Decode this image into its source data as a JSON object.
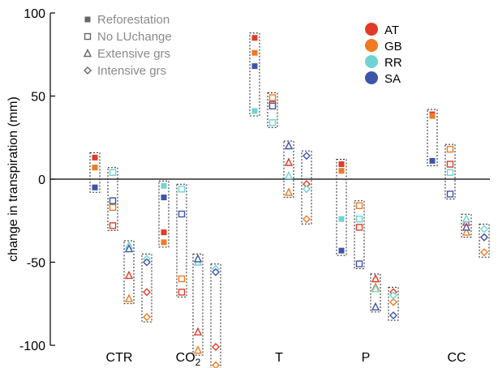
{
  "chart_data": {
    "type": "scatter",
    "ylabel": "change in transpiration (mm)",
    "ylim": [
      -100,
      100
    ],
    "yticks": [
      100,
      50,
      0,
      -50,
      -100
    ],
    "yticklabels": [
      "100",
      "50",
      "0",
      "-50",
      "-100"
    ],
    "categories": [
      "CTR",
      "CO2",
      "T",
      "P",
      "CC"
    ],
    "category_labels": [
      {
        "main": "CTR",
        "sub": ""
      },
      {
        "main": "CO",
        "sub": "2"
      },
      {
        "main": "T",
        "sub": ""
      },
      {
        "main": "P",
        "sub": ""
      },
      {
        "main": "CC",
        "sub": ""
      }
    ],
    "scenarios": [
      {
        "key": "refo",
        "label": "Reforestation",
        "marker": "filled-square"
      },
      {
        "key": "nolu",
        "label": "No LUchange",
        "marker": "open-square"
      },
      {
        "key": "ext",
        "label": "Extensive grs",
        "marker": "open-triangle"
      },
      {
        "key": "int",
        "label": "Intensive grs",
        "marker": "open-diamond"
      }
    ],
    "regions": [
      {
        "key": "AT",
        "label": "AT",
        "color": "#e03a2a"
      },
      {
        "key": "GB",
        "label": "GB",
        "color": "#f07a22"
      },
      {
        "key": "RR",
        "label": "RR",
        "color": "#6fd3d3"
      },
      {
        "key": "SA",
        "label": "SA",
        "color": "#3e55a9"
      }
    ],
    "values": {
      "CTR": {
        "refo": {
          "AT": 13,
          "GB": 7,
          "RR": -5,
          "SA": -5
        },
        "nolu": {
          "AT": -28,
          "GB": -17,
          "RR": 4,
          "SA": -13
        },
        "ext": {
          "AT": -58,
          "GB": -72,
          "RR": -40,
          "SA": -42
        },
        "int": {
          "AT": -68,
          "GB": -83,
          "RR": -48,
          "SA": -50
        }
      },
      "CO2": {
        "refo": {
          "AT": -32,
          "GB": -38,
          "RR": -4,
          "SA": -11
        },
        "nolu": {
          "AT": -68,
          "GB": -60,
          "RR": -6,
          "SA": -21
        },
        "ext": {
          "AT": -92,
          "GB": -103,
          "RR": -50,
          "SA": -48
        },
        "int": {
          "AT": -101,
          "GB": -112,
          "RR": -54,
          "SA": -56
        }
      },
      "T": {
        "refo": {
          "AT": 85,
          "GB": 76,
          "RR": 41,
          "SA": 68
        },
        "nolu": {
          "AT": 45,
          "GB": 49,
          "RR": 34,
          "SA": 44
        },
        "ext": {
          "AT": 10,
          "GB": -8,
          "RR": 2,
          "SA": 20
        },
        "int": {
          "AT": -3,
          "GB": -24,
          "RR": -6,
          "SA": 14
        }
      },
      "P": {
        "refo": {
          "AT": 9,
          "GB": 5,
          "RR": -24,
          "SA": -43
        },
        "nolu": {
          "AT": -29,
          "GB": -16,
          "RR": -24,
          "SA": -51
        },
        "ext": {
          "AT": -60,
          "GB": -65,
          "RR": -66,
          "SA": -77
        },
        "int": {
          "AT": -68,
          "GB": -74,
          "RR": -70,
          "SA": -82
        }
      },
      "CC": {
        "refo": {
          "AT": 39,
          "GB": 38,
          "RR": 11,
          "SA": 11
        },
        "nolu": {
          "AT": 9,
          "GB": 18,
          "RR": 4,
          "SA": -9
        },
        "ext": {
          "AT": -26,
          "GB": -32,
          "RR": -24,
          "SA": -29
        },
        "int": {
          "AT": -35,
          "GB": -44,
          "RR": -30,
          "SA": -35
        }
      }
    },
    "grid": false,
    "legend_placement": [
      "top-left",
      "top-right"
    ]
  }
}
